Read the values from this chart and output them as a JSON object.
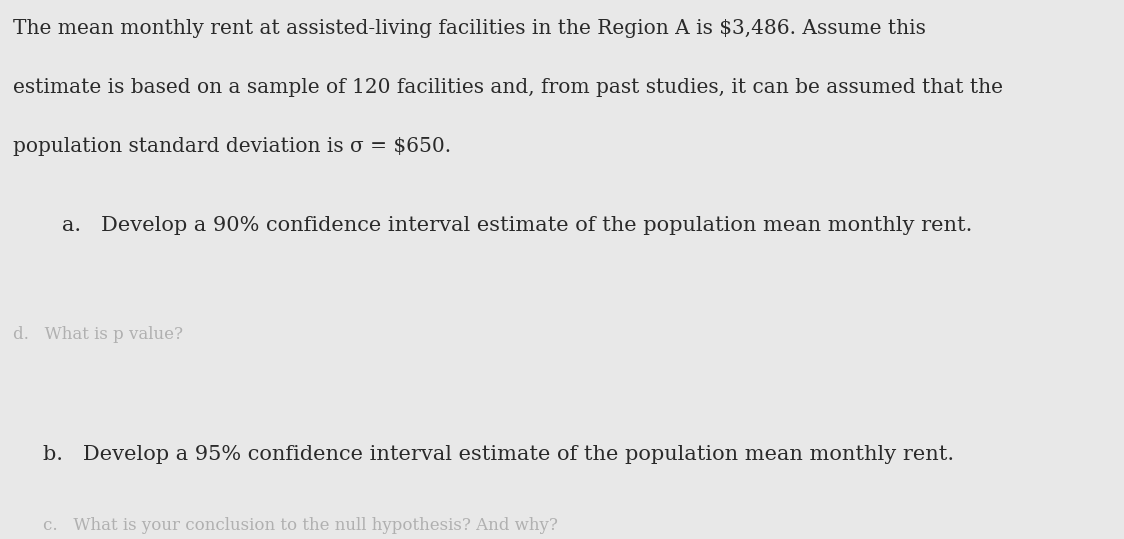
{
  "background_color": "#e8e8e8",
  "paragraph_text_line1": "The mean monthly rent at assisted-living facilities in the Region A is $3,486. Assume this",
  "paragraph_text_line2": "estimate is based on a sample of 120 facilities and, from past studies, it can be assumed that the",
  "paragraph_text_line3": "population standard deviation is σ = $650.",
  "item_a": "a.   Develop a 90% confidence interval estimate of the population mean monthly rent.",
  "item_b": "b.   Develop a 95% confidence interval estimate of the population mean monthly rent.",
  "faded_text": "d.   What is p value?",
  "faded_bottom": "c.   What is your conclusion to the null hypothesis? And why?",
  "text_color": "#2a2a2a",
  "faded_color": "#b0b0b0",
  "font_size_main": 14.5,
  "font_size_items": 15.0,
  "font_size_faded": 12.0
}
